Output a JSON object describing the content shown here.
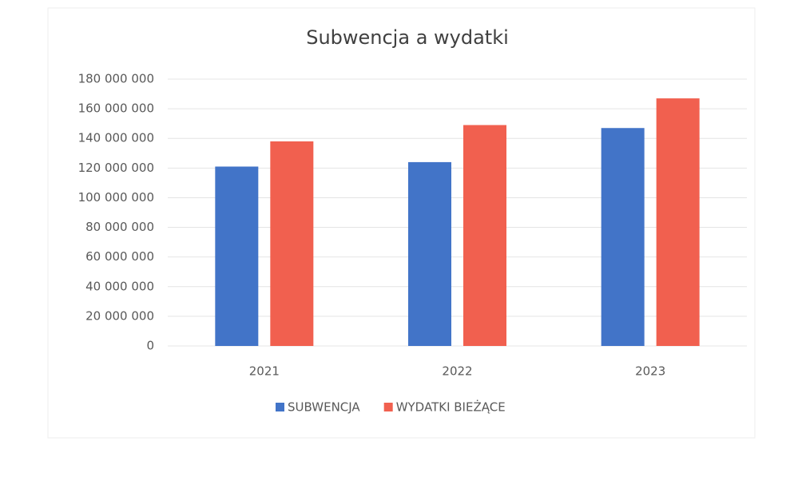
{
  "chart_data": {
    "type": "bar",
    "title": "Subwencja a wydatki",
    "categories": [
      "2021",
      "2022",
      "2023"
    ],
    "series": [
      {
        "name": "SUBWENCJA",
        "color": "#4274c8",
        "values": [
          121000000,
          124000000,
          147000000
        ]
      },
      {
        "name": "WYDATKI BIEŻĄCE",
        "color": "#f1604f",
        "values": [
          138000000,
          149000000,
          167000000
        ]
      }
    ],
    "ylim": [
      0,
      180000000
    ],
    "yticks": [
      0,
      {
        "value": 20000000,
        "label": "20 000 000"
      },
      {
        "value": 40000000,
        "label": "40 000 000"
      },
      {
        "value": 60000000,
        "label": "60 000 000"
      },
      {
        "value": 80000000,
        "label": "80 000 000"
      },
      {
        "value": 100000000,
        "label": "100 000 000"
      },
      {
        "value": 120000000,
        "label": "120 000 000"
      },
      {
        "value": 140000000,
        "label": "140 000 000"
      },
      {
        "value": 160000000,
        "label": "160 000 000"
      },
      {
        "value": 180000000,
        "label": "180 000 000"
      }
    ],
    "grid": true,
    "legend": "bottom"
  }
}
